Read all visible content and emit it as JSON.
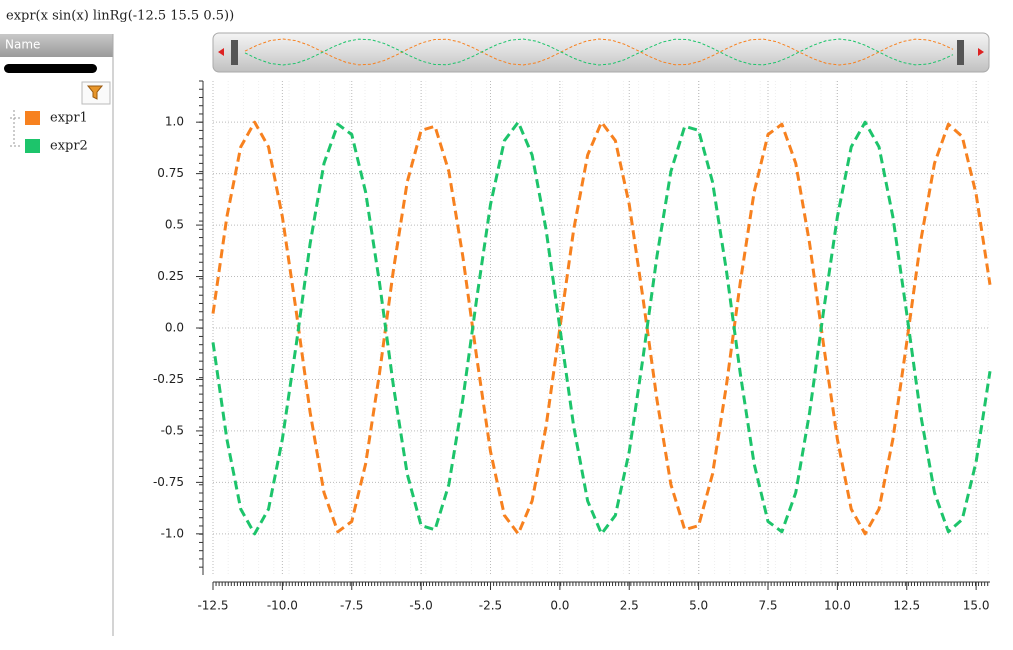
{
  "window_title": "expr(x sin(x) linRg(-12.5 15.5 0.5))",
  "legend_panel": {
    "header": "Name"
  },
  "chart_data": {
    "type": "line",
    "x": [
      -12.5,
      -12,
      -11.5,
      -11,
      -10.5,
      -10,
      -9.5,
      -9,
      -8.5,
      -8,
      -7.5,
      -7,
      -6.5,
      -6,
      -5.5,
      -5,
      -4.5,
      -4,
      -3.5,
      -3,
      -2.5,
      -2,
      -1.5,
      -1,
      -0.5,
      0,
      0.5,
      1,
      1.5,
      2,
      2.5,
      3,
      3.5,
      4,
      4.5,
      5,
      5.5,
      6,
      6.5,
      7,
      7.5,
      8,
      8.5,
      9,
      9.5,
      10,
      10.5,
      11,
      11.5,
      12,
      12.5,
      13,
      13.5,
      14,
      14.5,
      15,
      15.5
    ],
    "series": [
      {
        "name": "expr1",
        "color": "#f7811f",
        "values": [
          0.07,
          0.54,
          0.88,
          1.0,
          0.88,
          0.54,
          0.08,
          -0.41,
          -0.8,
          -0.99,
          -0.94,
          -0.66,
          -0.22,
          0.28,
          0.71,
          0.96,
          0.98,
          0.76,
          0.35,
          -0.14,
          -0.6,
          -0.91,
          -1.0,
          -0.84,
          -0.48,
          0,
          0.48,
          0.84,
          1.0,
          0.91,
          0.6,
          0.14,
          -0.35,
          -0.76,
          -0.98,
          -0.96,
          -0.71,
          -0.28,
          0.22,
          0.66,
          0.94,
          0.99,
          0.8,
          0.41,
          -0.08,
          -0.54,
          -0.88,
          -1.0,
          -0.88,
          -0.54,
          -0.07,
          0.42,
          0.8,
          0.99,
          0.93,
          0.65,
          0.21
        ]
      },
      {
        "name": "expr2",
        "color": "#1dc46b",
        "values": [
          -0.07,
          -0.54,
          -0.88,
          -1.0,
          -0.88,
          -0.54,
          -0.08,
          0.41,
          0.8,
          0.99,
          0.94,
          0.66,
          0.22,
          -0.28,
          -0.71,
          -0.96,
          -0.98,
          -0.76,
          -0.35,
          0.14,
          0.6,
          0.91,
          1.0,
          0.84,
          0.48,
          0,
          -0.48,
          -0.84,
          -1.0,
          -0.91,
          -0.6,
          -0.14,
          0.35,
          0.76,
          0.98,
          0.96,
          0.71,
          0.28,
          -0.22,
          -0.66,
          -0.94,
          -0.99,
          -0.8,
          -0.41,
          0.08,
          0.54,
          0.88,
          1.0,
          0.88,
          0.54,
          0.07,
          -0.42,
          -0.8,
          -0.99,
          -0.93,
          -0.65,
          -0.21
        ]
      }
    ],
    "xlim": [
      -12.5,
      15.5
    ],
    "ylim": [
      -1.2,
      1.2
    ],
    "xticks": [
      -12.5,
      {
        "value": -10,
        "label": "-10.0"
      },
      -7.5,
      {
        "value": -5,
        "label": "-5.0"
      },
      -2.5,
      {
        "value": 0,
        "label": "0.0"
      },
      2.5,
      {
        "value": 5,
        "label": "5.0"
      },
      7.5,
      {
        "value": 10,
        "label": "10.0"
      },
      12.5,
      {
        "value": 15,
        "label": "15.0"
      }
    ],
    "yticks": [
      {
        "value": -1,
        "label": "-1.0"
      },
      -0.75,
      -0.5,
      -0.25,
      {
        "value": 0,
        "label": "0.0"
      },
      0.25,
      0.5,
      0.75,
      {
        "value": 1,
        "label": "1.0"
      }
    ],
    "grid": true
  }
}
